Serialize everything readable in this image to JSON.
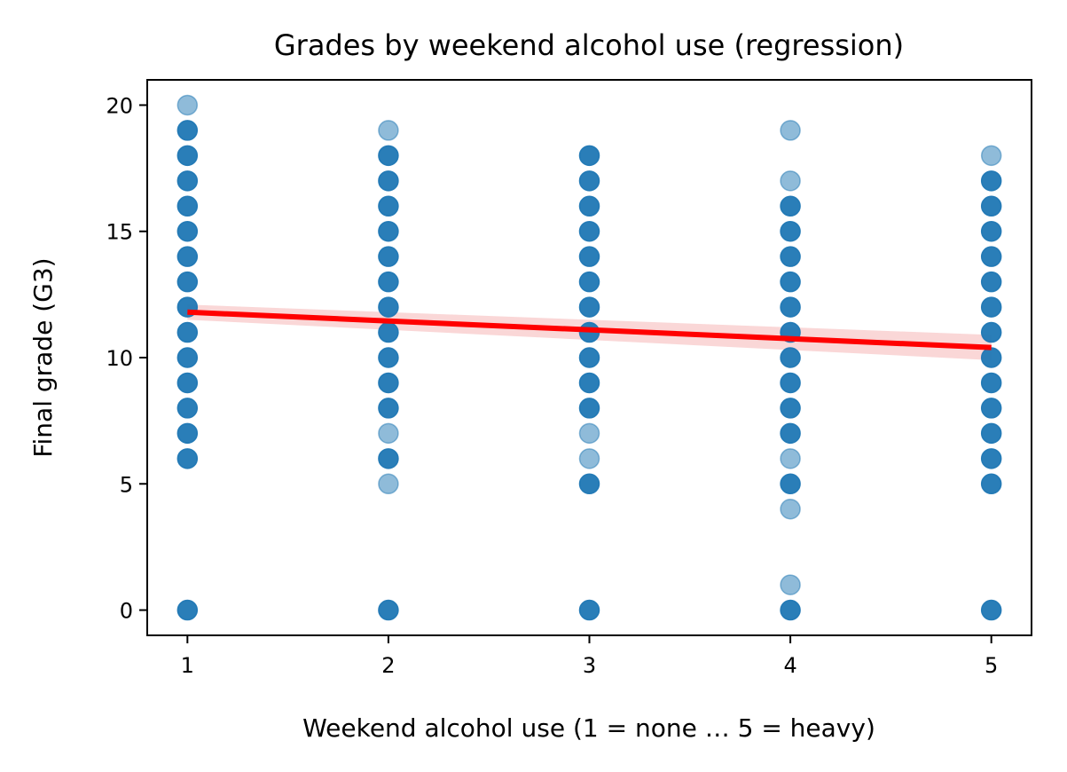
{
  "chart_data": {
    "type": "scatter",
    "title": "Grades by weekend alcohol use (regression)",
    "xlabel": "Weekend alcohol use (1 = none … 5 = heavy)",
    "ylabel": "Final grade (G3)",
    "xlim": [
      0.8,
      5.2
    ],
    "ylim": [
      -1,
      21
    ],
    "x_ticks": [
      1,
      2,
      3,
      4,
      5
    ],
    "y_ticks": [
      0,
      5,
      10,
      15,
      20
    ],
    "grid": false,
    "legend": "none",
    "point_color": "#1f77b4",
    "line_color": "#ff0000",
    "band_color": "#f4a6a6",
    "points": [
      {
        "x": 1,
        "y": 0,
        "dense": true
      },
      {
        "x": 1,
        "y": 6,
        "dense": true
      },
      {
        "x": 1,
        "y": 7,
        "dense": true
      },
      {
        "x": 1,
        "y": 8,
        "dense": true
      },
      {
        "x": 1,
        "y": 9,
        "dense": true
      },
      {
        "x": 1,
        "y": 10,
        "dense": true
      },
      {
        "x": 1,
        "y": 11,
        "dense": true
      },
      {
        "x": 1,
        "y": 12,
        "dense": true
      },
      {
        "x": 1,
        "y": 13,
        "dense": true
      },
      {
        "x": 1,
        "y": 14,
        "dense": true
      },
      {
        "x": 1,
        "y": 15,
        "dense": true
      },
      {
        "x": 1,
        "y": 16,
        "dense": true
      },
      {
        "x": 1,
        "y": 17,
        "dense": true
      },
      {
        "x": 1,
        "y": 18,
        "dense": true
      },
      {
        "x": 1,
        "y": 19,
        "dense": true
      },
      {
        "x": 1,
        "y": 20,
        "dense": false
      },
      {
        "x": 2,
        "y": 0,
        "dense": true
      },
      {
        "x": 2,
        "y": 5,
        "dense": false
      },
      {
        "x": 2,
        "y": 6,
        "dense": true
      },
      {
        "x": 2,
        "y": 7,
        "dense": false
      },
      {
        "x": 2,
        "y": 8,
        "dense": true
      },
      {
        "x": 2,
        "y": 9,
        "dense": true
      },
      {
        "x": 2,
        "y": 10,
        "dense": true
      },
      {
        "x": 2,
        "y": 11,
        "dense": true
      },
      {
        "x": 2,
        "y": 12,
        "dense": true
      },
      {
        "x": 2,
        "y": 13,
        "dense": true
      },
      {
        "x": 2,
        "y": 14,
        "dense": true
      },
      {
        "x": 2,
        "y": 15,
        "dense": true
      },
      {
        "x": 2,
        "y": 16,
        "dense": true
      },
      {
        "x": 2,
        "y": 17,
        "dense": true
      },
      {
        "x": 2,
        "y": 18,
        "dense": true
      },
      {
        "x": 2,
        "y": 19,
        "dense": false
      },
      {
        "x": 3,
        "y": 0,
        "dense": true
      },
      {
        "x": 3,
        "y": 5,
        "dense": true
      },
      {
        "x": 3,
        "y": 6,
        "dense": false
      },
      {
        "x": 3,
        "y": 7,
        "dense": false
      },
      {
        "x": 3,
        "y": 8,
        "dense": true
      },
      {
        "x": 3,
        "y": 9,
        "dense": true
      },
      {
        "x": 3,
        "y": 10,
        "dense": true
      },
      {
        "x": 3,
        "y": 11,
        "dense": true
      },
      {
        "x": 3,
        "y": 12,
        "dense": true
      },
      {
        "x": 3,
        "y": 13,
        "dense": true
      },
      {
        "x": 3,
        "y": 14,
        "dense": true
      },
      {
        "x": 3,
        "y": 15,
        "dense": true
      },
      {
        "x": 3,
        "y": 16,
        "dense": true
      },
      {
        "x": 3,
        "y": 17,
        "dense": true
      },
      {
        "x": 3,
        "y": 18,
        "dense": true
      },
      {
        "x": 4,
        "y": 0,
        "dense": true
      },
      {
        "x": 4,
        "y": 1,
        "dense": false
      },
      {
        "x": 4,
        "y": 4,
        "dense": false
      },
      {
        "x": 4,
        "y": 5,
        "dense": true
      },
      {
        "x": 4,
        "y": 6,
        "dense": false
      },
      {
        "x": 4,
        "y": 7,
        "dense": true
      },
      {
        "x": 4,
        "y": 8,
        "dense": true
      },
      {
        "x": 4,
        "y": 9,
        "dense": true
      },
      {
        "x": 4,
        "y": 10,
        "dense": true
      },
      {
        "x": 4,
        "y": 11,
        "dense": true
      },
      {
        "x": 4,
        "y": 12,
        "dense": true
      },
      {
        "x": 4,
        "y": 13,
        "dense": true
      },
      {
        "x": 4,
        "y": 14,
        "dense": true
      },
      {
        "x": 4,
        "y": 15,
        "dense": true
      },
      {
        "x": 4,
        "y": 16,
        "dense": true
      },
      {
        "x": 4,
        "y": 17,
        "dense": false
      },
      {
        "x": 4,
        "y": 19,
        "dense": false
      },
      {
        "x": 5,
        "y": 0,
        "dense": true
      },
      {
        "x": 5,
        "y": 5,
        "dense": true
      },
      {
        "x": 5,
        "y": 6,
        "dense": true
      },
      {
        "x": 5,
        "y": 7,
        "dense": true
      },
      {
        "x": 5,
        "y": 8,
        "dense": true
      },
      {
        "x": 5,
        "y": 9,
        "dense": true
      },
      {
        "x": 5,
        "y": 10,
        "dense": true
      },
      {
        "x": 5,
        "y": 11,
        "dense": true
      },
      {
        "x": 5,
        "y": 12,
        "dense": true
      },
      {
        "x": 5,
        "y": 13,
        "dense": true
      },
      {
        "x": 5,
        "y": 14,
        "dense": true
      },
      {
        "x": 5,
        "y": 15,
        "dense": true
      },
      {
        "x": 5,
        "y": 16,
        "dense": true
      },
      {
        "x": 5,
        "y": 17,
        "dense": true
      },
      {
        "x": 5,
        "y": 18,
        "dense": false
      }
    ],
    "regression": {
      "x": [
        1,
        5
      ],
      "y": [
        11.8,
        10.4
      ],
      "ci_lower": [
        11.5,
        9.9
      ],
      "ci_upper": [
        12.1,
        10.9
      ]
    }
  }
}
